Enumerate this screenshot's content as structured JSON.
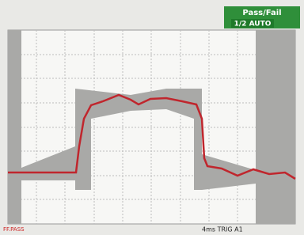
{
  "header": {
    "title": "Pass/Fail",
    "mode": "1/2 AUTO"
  },
  "footer": {
    "status": "FF.PASS",
    "info": "4ms TRIG A1"
  }
}
